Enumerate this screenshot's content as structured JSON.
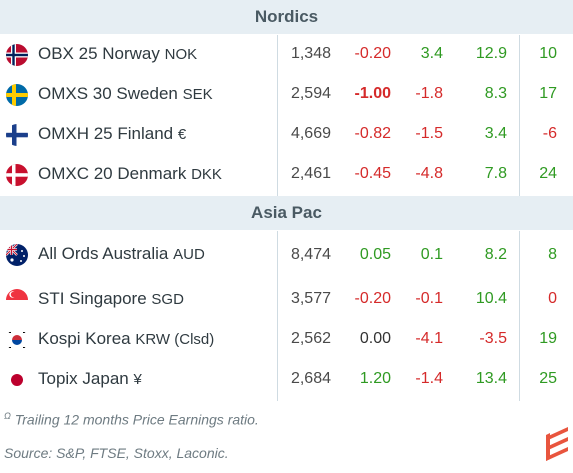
{
  "sections": [
    {
      "title": "Nordics",
      "rows": [
        {
          "flag": "norway-flag-icon",
          "name": "OBX 25 Norway",
          "currency": "NOK",
          "price": "1,348",
          "day": "-0.20",
          "day_class": "neg",
          "day_bold": false,
          "mtd": "3.4",
          "mtd_class": "pos",
          "ytd": "12.9",
          "ytd_class": "pos",
          "pe": "10",
          "pe_class": "pos"
        },
        {
          "flag": "sweden-flag-icon",
          "name": "OMXS 30 Sweden",
          "currency": "SEK",
          "price": "2,594",
          "day": "-1.00",
          "day_class": "neg",
          "day_bold": true,
          "mtd": "-1.8",
          "mtd_class": "neg",
          "ytd": "8.3",
          "ytd_class": "pos",
          "pe": "17",
          "pe_class": "pos"
        },
        {
          "flag": "finland-flag-icon",
          "name": "OMXH 25 Finland",
          "currency": " €",
          "price": "4,669",
          "day": "-0.82",
          "day_class": "neg",
          "day_bold": false,
          "mtd": "-1.5",
          "mtd_class": "neg",
          "ytd": "3.4",
          "ytd_class": "pos",
          "pe": "-6",
          "pe_class": "neg"
        },
        {
          "flag": "denmark-flag-icon",
          "name": "OMXC 20 Denmark",
          "currency": "DKK",
          "price": "2,461",
          "day": "-0.45",
          "day_class": "neg",
          "day_bold": false,
          "mtd": "-4.8",
          "mtd_class": "neg",
          "ytd": "7.8",
          "ytd_class": "pos",
          "pe": "24",
          "pe_class": "pos"
        }
      ]
    },
    {
      "title": "Asia Pac",
      "rows": [
        {
          "flag": "australia-flag-icon",
          "name": "All Ords Australia",
          "currency": "AUD",
          "price": "8,474",
          "day": "0.05",
          "day_class": "pos",
          "day_bold": false,
          "mtd": "0.1",
          "mtd_class": "pos",
          "ytd": "8.2",
          "ytd_class": "pos",
          "pe": "8",
          "pe_class": "pos"
        },
        {
          "flag": "singapore-flag-icon",
          "name": "STI Singapore",
          "currency": "SGD",
          "price": "3,577",
          "day": "-0.20",
          "day_class": "neg",
          "day_bold": false,
          "mtd": "-0.1",
          "mtd_class": "neg",
          "ytd": "10.4",
          "ytd_class": "pos",
          "pe": "0",
          "pe_class": "neg"
        },
        {
          "flag": "korea-flag-icon",
          "name": "Kospi Korea",
          "currency": "KRW (Clsd)",
          "price": "2,562",
          "day": "0.00",
          "day_class": "neutral",
          "day_bold": false,
          "mtd": "-4.1",
          "mtd_class": "neg",
          "ytd": "-3.5",
          "ytd_class": "neg",
          "pe": "19",
          "pe_class": "pos"
        },
        {
          "flag": "japan-flag-icon",
          "name": "Topix Japan",
          "currency": " ¥",
          "price": "2,684",
          "day": "1.20",
          "day_class": "pos",
          "day_bold": false,
          "mtd": "-1.4",
          "mtd_class": "neg",
          "ytd": "13.4",
          "ytd_class": "pos",
          "pe": "25",
          "pe_class": "pos"
        }
      ]
    }
  ],
  "footnotes": {
    "pe_note_marker": "Ω",
    "pe_note": "Trailing 12 months Price Earnings ratio.",
    "source": "Source: S&P, FTSE, Stoxx, Laconic."
  },
  "colors": {
    "negative": "#d52a2a",
    "positive": "#2f9a22",
    "header_bg": "#e6eef3",
    "logo": "#e8553e"
  },
  "logo_icon": "laconic-logo-icon"
}
